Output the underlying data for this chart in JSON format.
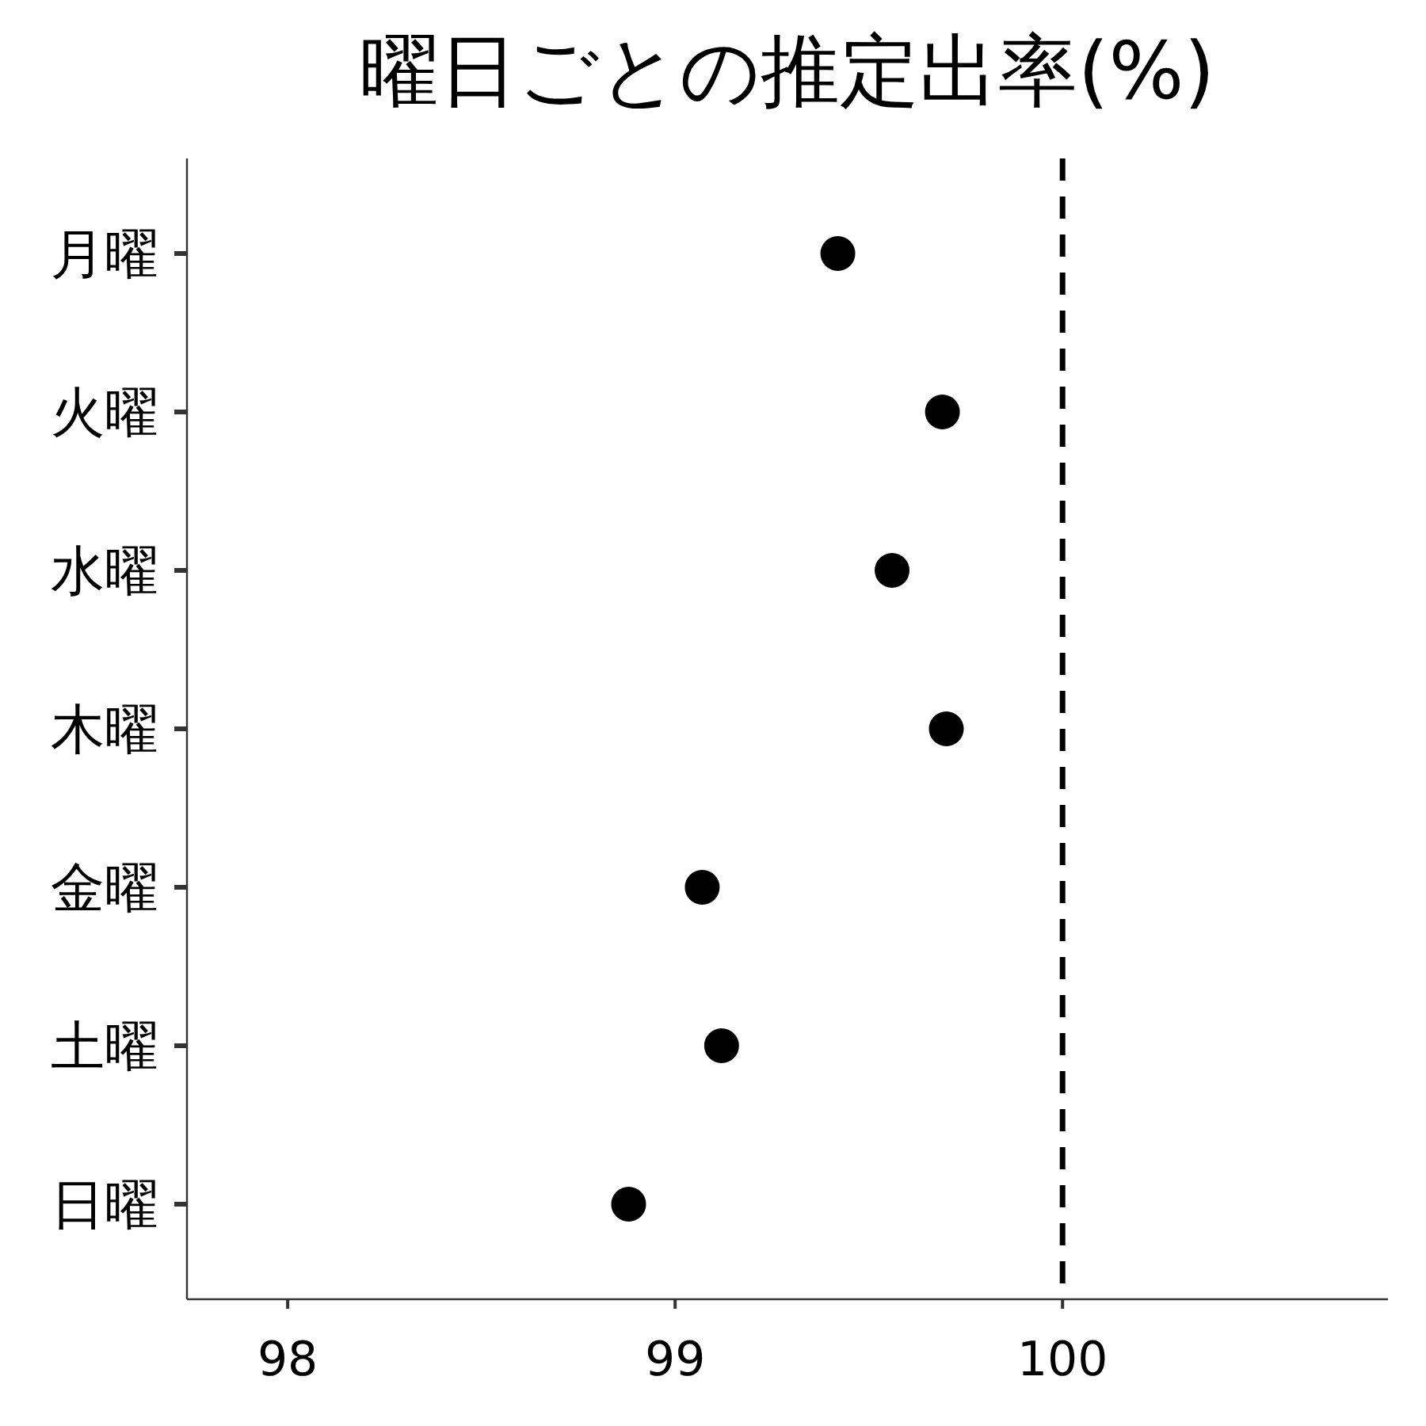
{
  "chart_data": {
    "type": "scatter",
    "title": "曜日ごとの推定出率(%)",
    "orientation": "horizontal",
    "categories": [
      "月曜",
      "火曜",
      "水曜",
      "木曜",
      "金曜",
      "土曜",
      "日曜"
    ],
    "values": [
      99.42,
      99.69,
      99.56,
      99.7,
      99.07,
      99.12,
      98.88
    ],
    "color": "#000000",
    "marker": "circle",
    "xlim": [
      97.74,
      100.84
    ],
    "xticks": [
      98,
      99,
      100
    ],
    "ref_lines": [
      {
        "axis": "x",
        "value": 100,
        "color": "#000000",
        "line_style": "dashed"
      }
    ],
    "grid": false
  }
}
